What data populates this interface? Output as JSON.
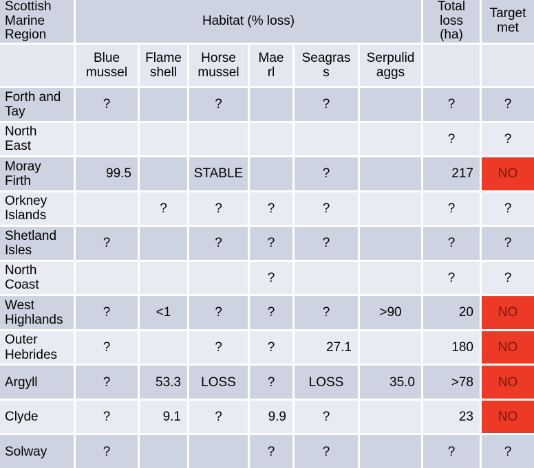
{
  "chart_data": {
    "type": "table",
    "corner_header": "Scottish Marine Region",
    "group_header": "Habitat (% loss)",
    "habitat_columns": [
      "Blue mussel",
      "Flame shell",
      "Horse mussel",
      "Maerl",
      "Seagrass",
      "Serpulid aggs"
    ],
    "extra_columns": [
      "Total loss (ha)",
      "Target met"
    ],
    "rows": [
      {
        "region": "Forth and Tay",
        "cells": [
          "?",
          "",
          "?",
          "",
          "?",
          "",
          "?",
          "?"
        ]
      },
      {
        "region": "North East",
        "cells": [
          "",
          "",
          "",
          "",
          "",
          "",
          "?",
          "?"
        ]
      },
      {
        "region": "Moray Firth",
        "cells": [
          "99.5",
          "",
          "STABLE",
          "",
          "?",
          "",
          "217",
          "NO"
        ]
      },
      {
        "region": "Orkney Islands",
        "cells": [
          "",
          "?",
          "?",
          "?",
          "?",
          "",
          "?",
          "?"
        ]
      },
      {
        "region": "Shetland Isles",
        "cells": [
          "?",
          "",
          "?",
          "?",
          "?",
          "",
          "?",
          "?"
        ]
      },
      {
        "region": "North Coast",
        "cells": [
          "",
          "",
          "",
          "?",
          "",
          "",
          "?",
          "?"
        ]
      },
      {
        "region": "West Highlands",
        "cells": [
          "?",
          "<1",
          "?",
          "?",
          "?",
          ">90",
          "20",
          "NO"
        ]
      },
      {
        "region": "Outer Hebrides",
        "cells": [
          "?",
          "",
          "?",
          "?",
          "27.1",
          "",
          "180",
          "NO"
        ]
      },
      {
        "region": "Argyll",
        "cells": [
          "?",
          "53.3",
          "LOSS",
          "?",
          "LOSS",
          "35.0",
          ">78",
          "NO"
        ]
      },
      {
        "region": "Clyde",
        "cells": [
          "?",
          "9.1",
          "?",
          "9.9",
          "?",
          "",
          "23",
          "NO"
        ]
      },
      {
        "region": "Solway",
        "cells": [
          "?",
          "",
          "",
          "?",
          "?",
          "",
          "?",
          "?"
        ]
      }
    ]
  },
  "display": {
    "corner_header": "Scottish\nMarine\nRegion",
    "group_header": "Habitat (% loss)",
    "total_header": "Total\nloss\n(ha)",
    "target_header": "Target\nmet",
    "habitat_columns": [
      "Blue\nmussel",
      "Flame\nshell",
      "Horse\nmussel",
      "Mae\nrl",
      "Seagras\ns",
      "Serpulid\naggs"
    ],
    "regions": [
      "Forth and\nTay",
      "North\nEast",
      "Moray\nFirth",
      "Orkney\nIslands",
      "Shetland\nIsles",
      "North\nCoast",
      "West\nHighlands",
      "Outer\nHebrides",
      "Argyll",
      "Clyde",
      "Solway"
    ]
  },
  "colors": {
    "band_dark": "#cdd3e1",
    "band_light": "#e9ebf2",
    "band_subheader": "#e4e7ef",
    "grid_line": "#ffffff",
    "text_color": "#000000",
    "target_no_bg": "#ed3a26",
    "target_no_text": "#7e150e"
  }
}
